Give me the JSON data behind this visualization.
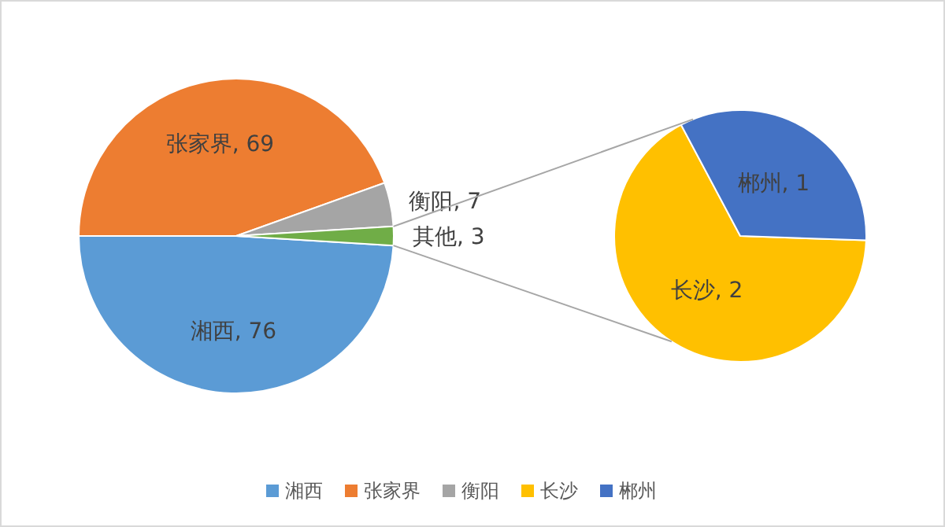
{
  "chart_data": [
    {
      "type": "pie",
      "categories": [
        "湘西",
        "张家界",
        "衡阳",
        null
      ],
      "values": [
        76,
        69,
        7,
        3
      ],
      "colors": [
        "#5b9bd5",
        "#ed7d31",
        "#a5a5a5",
        "#70ad47"
      ],
      "value_labels": [
        "湘西, 76",
        "张家界, 69",
        "衡阳, 7",
        "其他, 3"
      ],
      "legend": "bottom"
    },
    {
      "type": "pie",
      "categories": [
        "长沙",
        "郴州"
      ],
      "values": [
        2,
        1
      ],
      "colors": [
        "#ffc000",
        "#4472c4"
      ],
      "value_labels": [
        "长沙, 2",
        "郴州, 1"
      ],
      "legend": "bottom"
    }
  ]
}
